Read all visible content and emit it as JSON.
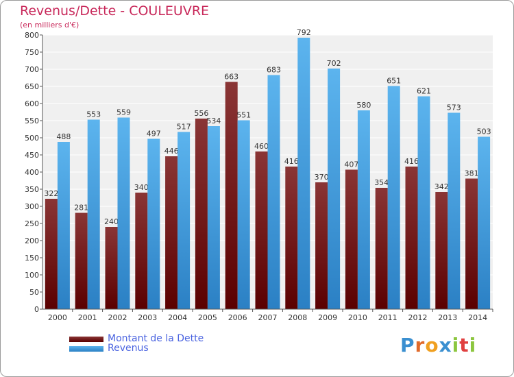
{
  "header": {
    "title": "Revenus/Dette - COULEUVRE",
    "subtitle": "(en milliers d'€)"
  },
  "legend": [
    {
      "label": "Montant de la Dette",
      "color": "#7a1c1c"
    },
    {
      "label": "Revenus",
      "color": "#4aa3e4"
    }
  ],
  "logo": {
    "text": "Proxiti"
  },
  "colors": {
    "debt_top": "#8a3535",
    "debt_bottom": "#5a0000",
    "revenue_top": "#5cb4ee",
    "revenue_bottom": "#2b80c4",
    "axis_text": "#333333",
    "plot_bg": "#f0f0f0",
    "grid": "#ffffff"
  },
  "chart_data": {
    "type": "bar",
    "title": "Revenus/Dette - COULEUVRE",
    "subtitle": "(en milliers d'€)",
    "categories": [
      "2000",
      "2001",
      "2002",
      "2003",
      "2004",
      "2005",
      "2006",
      "2007",
      "2008",
      "2009",
      "2010",
      "2011",
      "2012",
      "2013",
      "2014"
    ],
    "series": [
      {
        "name": "Montant de la Dette",
        "values": [
          322,
          281,
          240,
          340,
          446,
          556,
          663,
          460,
          416,
          370,
          407,
          354,
          416,
          342,
          381
        ]
      },
      {
        "name": "Revenus",
        "values": [
          488,
          553,
          559,
          497,
          517,
          534,
          551,
          683,
          792,
          702,
          580,
          651,
          621,
          573,
          503
        ]
      }
    ],
    "ylim": [
      0,
      800
    ],
    "ytick_step": 50,
    "grid": true,
    "legend_position": "bottom-left"
  }
}
